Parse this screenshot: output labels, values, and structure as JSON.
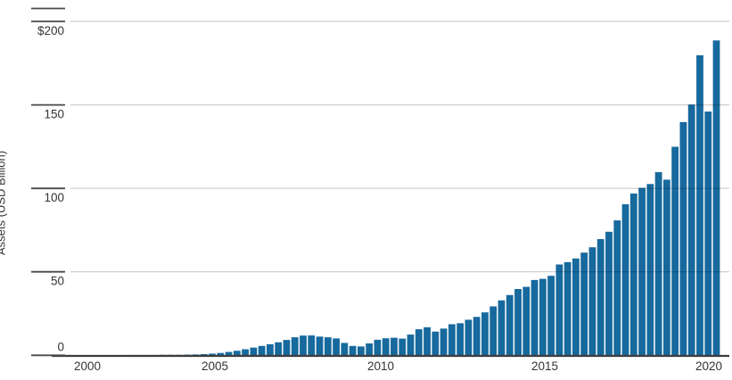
{
  "chart_data": {
    "type": "bar",
    "title": "",
    "ylabel": "Assets (USD Billion)",
    "xlabel": "",
    "ylim": [
      0,
      200
    ],
    "grid": true,
    "legend_position": "none",
    "frequency": "quarterly",
    "x_start": "2000Q2",
    "x_end": "2020Q2",
    "ytick_values": [
      0,
      50,
      100,
      150,
      200
    ],
    "ytick_labels": [
      "0",
      "50",
      "100",
      "150",
      "$200"
    ],
    "xtick_labels": [
      "2000",
      "2005",
      "2010",
      "2015",
      "2020"
    ],
    "bar_color": "#17699E",
    "gridline_color": "#cccccc",
    "axis_color": "#3c3c3c",
    "tick_color": "#4a4a4a",
    "text_color": "#333333",
    "quarters": [
      "2000Q2",
      "2000Q3",
      "2000Q4",
      "2001Q1",
      "2001Q2",
      "2001Q3",
      "2001Q4",
      "2002Q1",
      "2002Q2",
      "2002Q3",
      "2002Q4",
      "2003Q1",
      "2003Q2",
      "2003Q3",
      "2003Q4",
      "2004Q1",
      "2004Q2",
      "2004Q3",
      "2004Q4",
      "2005Q1",
      "2005Q2",
      "2005Q3",
      "2005Q4",
      "2006Q1",
      "2006Q2",
      "2006Q3",
      "2006Q4",
      "2007Q1",
      "2007Q2",
      "2007Q3",
      "2007Q4",
      "2008Q1",
      "2008Q2",
      "2008Q3",
      "2008Q4",
      "2009Q1",
      "2009Q2",
      "2009Q3",
      "2009Q4",
      "2010Q1",
      "2010Q2",
      "2010Q3",
      "2010Q4",
      "2011Q1",
      "2011Q2",
      "2011Q3",
      "2011Q4",
      "2012Q1",
      "2012Q2",
      "2012Q3",
      "2012Q4",
      "2013Q1",
      "2013Q2",
      "2013Q3",
      "2013Q4",
      "2014Q1",
      "2014Q2",
      "2014Q3",
      "2014Q4",
      "2015Q1",
      "2015Q2",
      "2015Q3",
      "2015Q4",
      "2016Q1",
      "2016Q2",
      "2016Q3",
      "2016Q4",
      "2017Q1",
      "2017Q2",
      "2017Q3",
      "2017Q4",
      "2018Q1",
      "2018Q2",
      "2018Q3",
      "2018Q4",
      "2019Q1",
      "2019Q2",
      "2019Q3",
      "2019Q4",
      "2020Q1",
      "2020Q2"
    ],
    "values": [
      0,
      0,
      0.1,
      0.1,
      0.1,
      0.1,
      0.1,
      0.1,
      0.1,
      0.2,
      0.2,
      0.2,
      0.2,
      0.3,
      0.3,
      0.3,
      0.4,
      0.5,
      0.7,
      1.0,
      1.4,
      2.0,
      2.7,
      3.6,
      4.6,
      5.6,
      6.6,
      7.8,
      9.2,
      10.8,
      11.8,
      11.9,
      11.2,
      10.8,
      10.1,
      7.4,
      5.6,
      5.3,
      7.1,
      9.3,
      10.2,
      10.5,
      10.0,
      12.4,
      15.6,
      16.8,
      14.2,
      16.0,
      18.6,
      19.2,
      21.3,
      23.0,
      25.7,
      29.3,
      32.9,
      36.1,
      39.7,
      41.0,
      45.1,
      45.8,
      47.6,
      54.4,
      55.8,
      58.0,
      61.5,
      64.7,
      69.6,
      74.0,
      80.8,
      90.5,
      96.9,
      100.3,
      102.6,
      109.7,
      105.2,
      124.9,
      139.7,
      150.2,
      179.7,
      146.0,
      188.6
    ]
  }
}
